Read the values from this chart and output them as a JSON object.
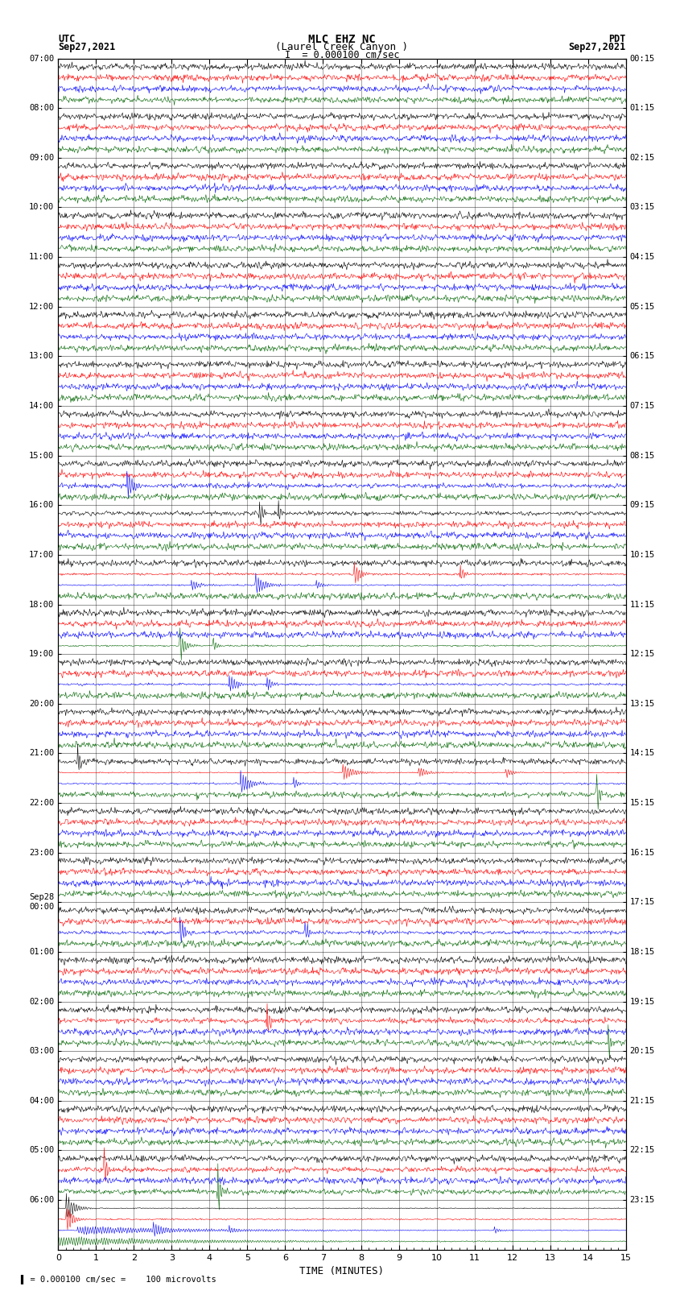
{
  "title_line1": "MLC EHZ NC",
  "title_line2": "(Laurel Creek Canyon )",
  "title_line3": "I  = 0.000100 cm/sec",
  "utc_label": "UTC",
  "utc_date": "Sep27,2021",
  "pdt_label": "PDT",
  "pdt_date": "Sep27,2021",
  "xlabel": "TIME (MINUTES)",
  "bottom_note": "= 0.000100 cm/sec =    100 microvolts",
  "left_times": [
    "07:00",
    "08:00",
    "09:00",
    "10:00",
    "11:00",
    "12:00",
    "13:00",
    "14:00",
    "15:00",
    "16:00",
    "17:00",
    "18:00",
    "19:00",
    "20:00",
    "21:00",
    "22:00",
    "23:00",
    "Sep28\n00:00",
    "01:00",
    "02:00",
    "03:00",
    "04:00",
    "05:00",
    "06:00"
  ],
  "right_times": [
    "00:15",
    "01:15",
    "02:15",
    "03:15",
    "04:15",
    "05:15",
    "06:15",
    "07:15",
    "08:15",
    "09:15",
    "10:15",
    "11:15",
    "12:15",
    "13:15",
    "14:15",
    "15:15",
    "16:15",
    "17:15",
    "18:15",
    "19:15",
    "20:15",
    "21:15",
    "22:15",
    "23:15"
  ],
  "n_rows": 24,
  "n_traces_per_row": 4,
  "colors": [
    "black",
    "red",
    "blue",
    "darkgreen"
  ],
  "minutes_per_row": 15,
  "bg_color": "white",
  "noise_base": 0.012,
  "noise_per_color": [
    0.008,
    0.007,
    0.01,
    0.006
  ],
  "events": [
    [
      8,
      2,
      1.8,
      0.6,
      0.18
    ],
    [
      9,
      0,
      5.3,
      0.4,
      0.14
    ],
    [
      9,
      0,
      5.8,
      0.3,
      0.12
    ],
    [
      10,
      1,
      7.8,
      0.6,
      0.22
    ],
    [
      10,
      2,
      3.5,
      0.8,
      0.2
    ],
    [
      10,
      2,
      5.2,
      1.0,
      0.3
    ],
    [
      10,
      2,
      6.8,
      0.5,
      0.18
    ],
    [
      10,
      1,
      10.6,
      0.4,
      0.16
    ],
    [
      11,
      3,
      3.2,
      0.6,
      0.28
    ],
    [
      11,
      3,
      4.1,
      0.3,
      0.18
    ],
    [
      12,
      2,
      4.5,
      0.8,
      0.22
    ],
    [
      12,
      2,
      5.5,
      0.5,
      0.18
    ],
    [
      14,
      0,
      0.5,
      0.3,
      0.12
    ],
    [
      14,
      2,
      4.8,
      1.0,
      0.3
    ],
    [
      14,
      2,
      6.2,
      0.4,
      0.18
    ],
    [
      14,
      1,
      7.5,
      1.2,
      0.24
    ],
    [
      14,
      1,
      9.5,
      0.8,
      0.2
    ],
    [
      14,
      1,
      11.8,
      0.6,
      0.18
    ],
    [
      14,
      3,
      14.2,
      0.3,
      0.14
    ],
    [
      17,
      2,
      3.2,
      0.5,
      0.18
    ],
    [
      17,
      2,
      6.5,
      0.4,
      0.16
    ],
    [
      22,
      1,
      1.2,
      0.3,
      0.16
    ],
    [
      22,
      3,
      4.2,
      0.3,
      0.16
    ],
    [
      23,
      3,
      0.0,
      15.0,
      0.1
    ],
    [
      23,
      0,
      0.2,
      0.8,
      0.55
    ],
    [
      23,
      1,
      0.2,
      0.6,
      0.4
    ],
    [
      23,
      2,
      0.5,
      12.0,
      0.2
    ],
    [
      23,
      2,
      2.5,
      0.8,
      0.3
    ],
    [
      23,
      2,
      4.5,
      0.5,
      0.22
    ],
    [
      23,
      2,
      11.5,
      0.6,
      0.2
    ],
    [
      19,
      1,
      5.5,
      0.3,
      0.14
    ],
    [
      19,
      3,
      14.5,
      0.2,
      0.18
    ]
  ]
}
